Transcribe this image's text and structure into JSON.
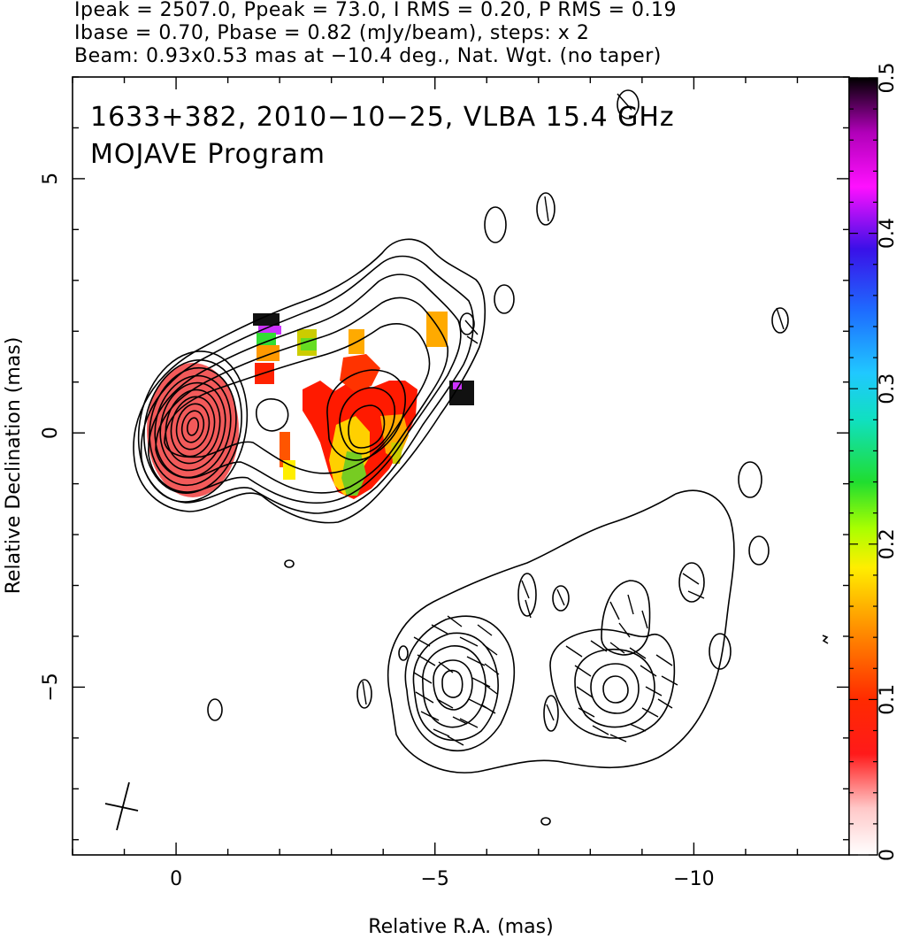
{
  "header": {
    "line1": "Ipeak = 2507.0, Ppeak = 73.0, I RMS = 0.20, P RMS = 0.19",
    "line2": "Ibase = 0.70, Pbase = 0.82 (mJy/beam), steps: x 2",
    "line3": "Beam: 0.93x0.53 mas at −10.4 deg., Nat. Wgt. (no taper)"
  },
  "plot_labels": {
    "source_line": "1633+382, 2010−10−25, VLBA 15.4 GHz",
    "program_line": "MOJAVE Program"
  },
  "chart_data": {
    "type": "heatmap",
    "xlabel": "Relative R.A. (mas)",
    "ylabel": "Relative Declination (mas)",
    "xlim": [
      2.0,
      -13.0
    ],
    "ylim": [
      -8.3,
      7.0
    ],
    "x_ticks": [
      0,
      -5,
      -10
    ],
    "x_tick_labels": [
      "0",
      "−5",
      "−10"
    ],
    "y_ticks": [
      5,
      0,
      -5
    ],
    "y_tick_labels": [
      "5",
      "0",
      "−5"
    ],
    "colorbar": {
      "range": [
        0,
        0.5
      ],
      "ticks": [
        0,
        0.1,
        0.2,
        0.3,
        0.4,
        0.5
      ],
      "tick_labels": [
        "0",
        "0.1",
        "0.2",
        "0.3",
        "0.4",
        "0.5"
      ]
    },
    "beam": {
      "major_mas": 0.93,
      "minor_mas": 0.53,
      "pa_deg": -10.4,
      "position": "bottom-left"
    },
    "core": {
      "x": -0.3,
      "y": 0.2
    },
    "knot": {
      "x": -3.3,
      "y": 0.0
    },
    "southern_component_1": {
      "x": -5.0,
      "y": -4.9
    },
    "southern_component_2": {
      "x": -8.2,
      "y": -5.1
    }
  }
}
